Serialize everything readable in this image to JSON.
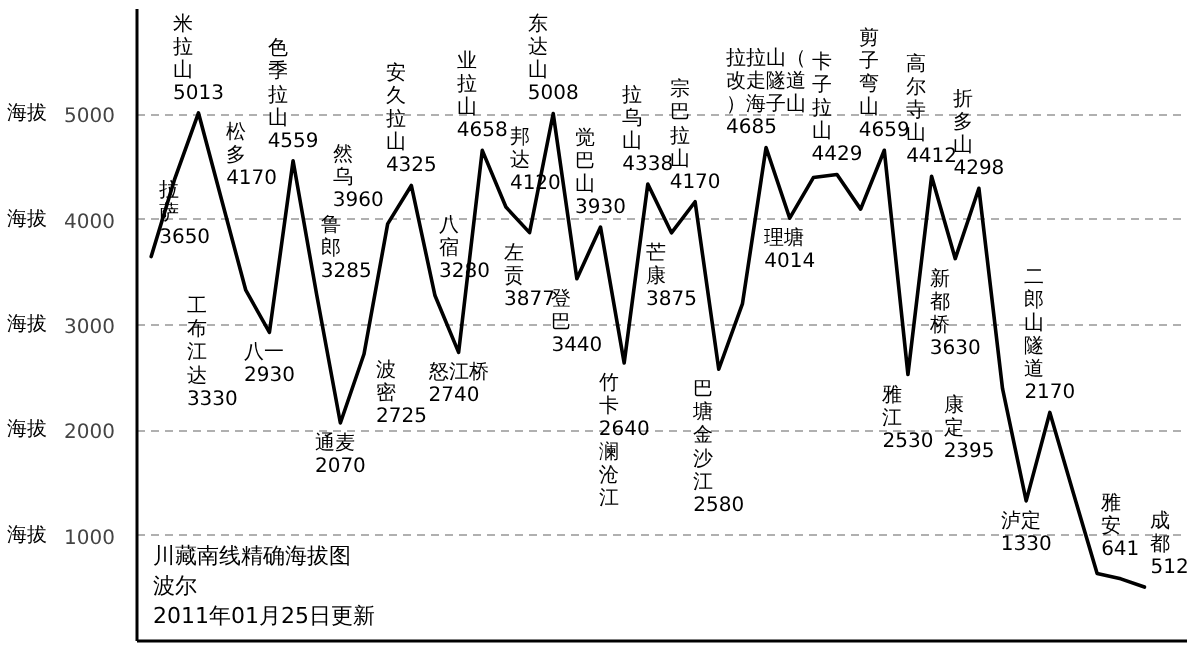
{
  "chart_data": {
    "type": "line",
    "title": "川藏南线精确海拔图",
    "categories": [
      null,
      null,
      null,
      null,
      null,
      null,
      null,
      null,
      null,
      null,
      null,
      null,
      null,
      null,
      null,
      null,
      null,
      null,
      null,
      null,
      null,
      null,
      null,
      null,
      null,
      null,
      null,
      null,
      null,
      null,
      null,
      null,
      null,
      null,
      null,
      null,
      null,
      null,
      null,
      null,
      null,
      null,
      null
    ],
    "values": [
      3650,
      4390,
      5013,
      4170,
      3330,
      2930,
      4559,
      3285,
      2070,
      2725,
      3960,
      4325,
      3280,
      2740,
      4658,
      4120,
      3877,
      5008,
      3440,
      3930,
      2640,
      4338,
      3875,
      4170,
      2580,
      3200,
      4685,
      4014,
      4400,
      4429,
      4100,
      4659,
      2530,
      4412,
      3630,
      4298,
      2395,
      1330,
      2170,
      1400,
      641,
      590,
      512
    ],
    "value_labels": [
      "拉萨\n3650",
      null,
      "米拉山\n5013",
      "松多\n4170",
      "工布江达\n3330",
      "八一\n2930",
      "色季拉山\n4559",
      "鲁郎\n3285",
      "通麦\n2070",
      "波密\n2725",
      "然乌\n3960",
      "安久拉山\n4325",
      "八宿\n3280",
      "怒江桥\n2740",
      "业拉山\n4658",
      "邦达\n4120",
      "左贡\n3877",
      "东达山\n5008",
      "登巴\n3440",
      "觉巴山\n3930",
      "竹卡\n2640\n澜沧江",
      "拉乌山\n4338",
      "芒康\n3875",
      "宗巴拉山\n4170",
      "巴塘金沙江\n2580",
      null,
      "拉拉山（改走隧道）海子山\n4685",
      "理塘\n4014",
      null,
      "卡子拉山\n4429",
      null,
      "剪子弯山\n4659",
      "雅江\n2530",
      "高尔寺山\n4412",
      "新都桥\n3630",
      "折多山\n4298",
      "康定\n2395",
      "泸定\n1330",
      "二郎山隧道\n2170",
      null,
      "雅安\n641",
      null,
      "成都\n512"
    ],
    "color": "#000000",
    "ylabel": "海拔",
    "ylim": [
      0,
      6000
    ],
    "yticks": [
      1000,
      2000,
      3000,
      4000,
      5000
    ],
    "tick_labels": "y",
    "grid": "y",
    "line_style": "solid",
    "annotations": [
      "波尔",
      "2011年01月25日更新"
    ]
  }
}
